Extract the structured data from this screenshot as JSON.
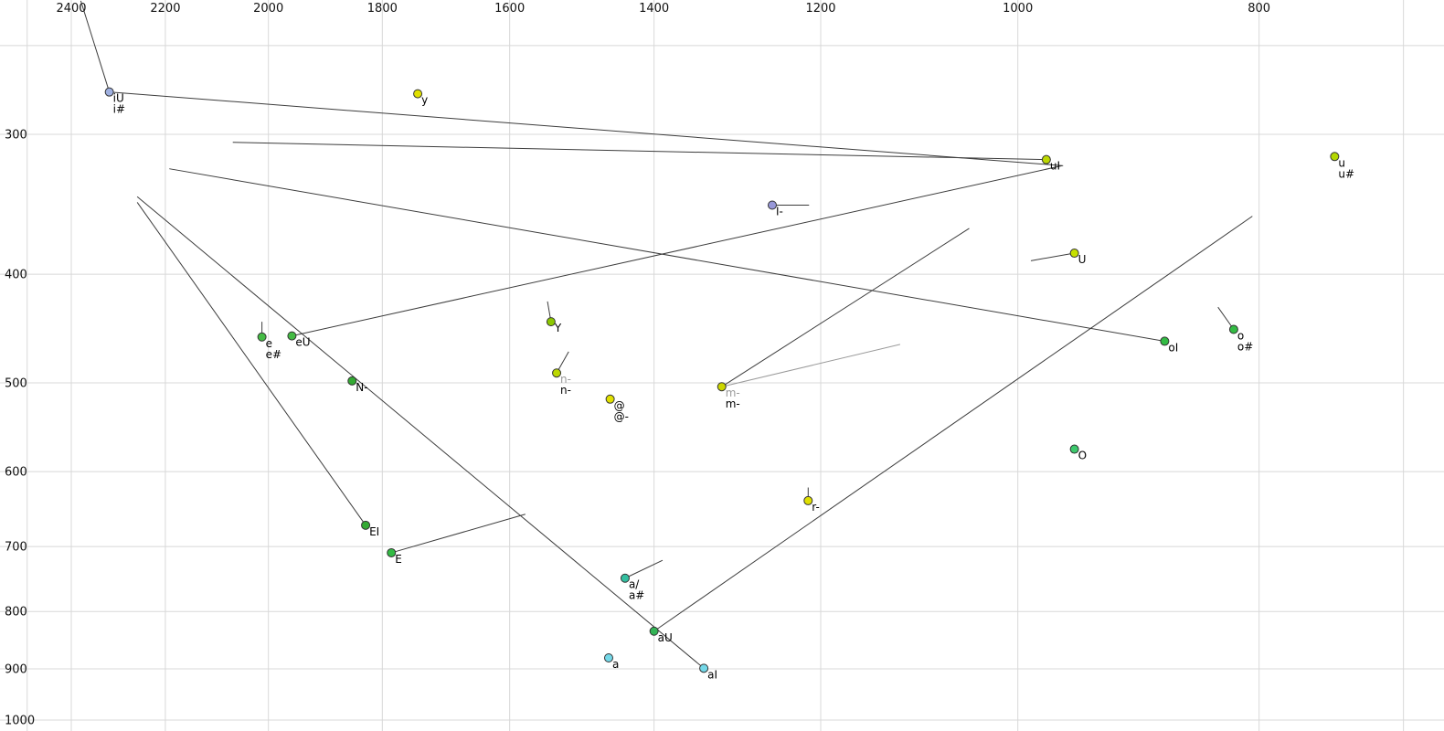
{
  "chart_data": {
    "type": "scatter",
    "title": "",
    "x_axis": {
      "scale": "log",
      "direction": "reversed",
      "range": [
        2564,
        674
      ],
      "ticks": [
        {
          "value": 2500,
          "label": ""
        },
        {
          "value": 2400,
          "label": "2400"
        },
        {
          "value": 2200,
          "label": "2200"
        },
        {
          "value": 2000,
          "label": "2000"
        },
        {
          "value": 1800,
          "label": "1800"
        },
        {
          "value": 1600,
          "label": "1600"
        },
        {
          "value": 1400,
          "label": "1400"
        },
        {
          "value": 1200,
          "label": "1200"
        },
        {
          "value": 1000,
          "label": "1000"
        },
        {
          "value": 800,
          "label": "800"
        },
        {
          "value": 700,
          "label": ""
        }
      ]
    },
    "y_axis": {
      "scale": "log",
      "direction": "increasing-downward",
      "range": [
        228,
        1023
      ],
      "ticks": [
        {
          "value": 250,
          "label": ""
        },
        {
          "value": 300,
          "label": "300"
        },
        {
          "value": 400,
          "label": "400"
        },
        {
          "value": 500,
          "label": "500"
        },
        {
          "value": 600,
          "label": "600"
        },
        {
          "value": 700,
          "label": "700"
        },
        {
          "value": 800,
          "label": "800"
        },
        {
          "value": 900,
          "label": "900"
        },
        {
          "value": 1000,
          "label": "1000"
        }
      ]
    },
    "style": {
      "grid_color": "#d8d8d8",
      "line_color": "#3c3c3c",
      "gray_line_color": "#9a9a9a",
      "point_stroke": "#333333",
      "label_color": "#000000",
      "gray_label_color": "#9a9a9a"
    },
    "points": [
      {
        "id": "iU",
        "f2": 2317,
        "f1": 275,
        "color": "#9fb0e0",
        "labels": [
          {
            "t": "iU"
          },
          {
            "t": "i#"
          }
        ]
      },
      {
        "id": "y",
        "f2": 1742,
        "f1": 276,
        "color": "#e0e000",
        "labels": [
          {
            "t": "y"
          }
        ]
      },
      {
        "id": "uI",
        "f2": 974,
        "f1": 316,
        "color": "#bcd800",
        "labels": [
          {
            "t": "uI"
          }
        ]
      },
      {
        "id": "u",
        "f2": 746,
        "f1": 314,
        "color": "#b4d800",
        "labels": [
          {
            "t": "u"
          },
          {
            "t": "u#"
          }
        ]
      },
      {
        "id": "I-",
        "f2": 1255,
        "f1": 347,
        "color": "#9898d8",
        "labels": [
          {
            "t": "I-"
          }
        ]
      },
      {
        "id": "U",
        "f2": 949,
        "f1": 383,
        "color": "#c6e000",
        "labels": [
          {
            "t": "U"
          }
        ]
      },
      {
        "id": "Y",
        "f2": 1540,
        "f1": 441,
        "color": "#8cc800",
        "labels": [
          {
            "t": "Y"
          }
        ]
      },
      {
        "id": "e",
        "f2": 2012,
        "f1": 455,
        "color": "#44bb44",
        "labels": [
          {
            "t": "e"
          },
          {
            "t": "e#"
          }
        ]
      },
      {
        "id": "eU",
        "f2": 1957,
        "f1": 454,
        "color": "#44bb44",
        "labels": [
          {
            "t": "eU"
          }
        ]
      },
      {
        "id": "n-",
        "f2": 1532,
        "f1": 490,
        "color": "#bcd800",
        "labels": [
          {
            "t": "n-",
            "gray": true
          },
          {
            "t": "n-"
          }
        ]
      },
      {
        "id": "N-",
        "f2": 1851,
        "f1": 498,
        "color": "#33aa33",
        "labels": [
          {
            "t": "N-"
          }
        ]
      },
      {
        "id": "@",
        "f2": 1458,
        "f1": 517,
        "color": "#e0e000",
        "labels": [
          {
            "t": "@"
          },
          {
            "t": "@-"
          }
        ]
      },
      {
        "id": "m-",
        "f2": 1315,
        "f1": 504,
        "color": "#ccd600",
        "labels": [
          {
            "t": "m-",
            "gray": true
          },
          {
            "t": "m-"
          }
        ]
      },
      {
        "id": "o",
        "f2": 819,
        "f1": 448,
        "color": "#33bb44",
        "labels": [
          {
            "t": "o"
          },
          {
            "t": "o#"
          }
        ]
      },
      {
        "id": "oI",
        "f2": 873,
        "f1": 459,
        "color": "#33bb44",
        "labels": [
          {
            "t": "oI"
          }
        ]
      },
      {
        "id": "O",
        "f2": 949,
        "f1": 573,
        "color": "#3cc86c",
        "labels": [
          {
            "t": "O"
          }
        ]
      },
      {
        "id": "r-",
        "f2": 1214,
        "f1": 637,
        "color": "#e0e000",
        "labels": [
          {
            "t": "r-"
          }
        ]
      },
      {
        "id": "EI",
        "f2": 1828,
        "f1": 670,
        "color": "#33aa33",
        "labels": [
          {
            "t": "EI"
          }
        ]
      },
      {
        "id": "E",
        "f2": 1785,
        "f1": 709,
        "color": "#33bb44",
        "labels": [
          {
            "t": "E"
          }
        ]
      },
      {
        "id": "a/",
        "f2": 1438,
        "f1": 747,
        "color": "#33bfa0",
        "labels": [
          {
            "t": "a/"
          },
          {
            "t": "a#"
          }
        ]
      },
      {
        "id": "aU",
        "f2": 1400,
        "f1": 833,
        "color": "#33b455",
        "labels": [
          {
            "t": "aU"
          }
        ]
      },
      {
        "id": "a",
        "f2": 1460,
        "f1": 880,
        "color": "#74d8e8",
        "labels": [
          {
            "t": "a"
          }
        ]
      },
      {
        "id": "aI",
        "f2": 1337,
        "f1": 899,
        "color": "#74d8e8",
        "labels": [
          {
            "t": "aI"
          }
        ]
      }
    ],
    "segments": [
      {
        "name": "iU-onset",
        "from": [
          2379,
          228
        ],
        "to": [
          2317,
          275
        ]
      },
      {
        "name": "iU-glide",
        "from": [
          2317,
          275
        ],
        "to": [
          959,
          320
        ]
      },
      {
        "name": "uI-glide",
        "from": [
          974,
          316
        ],
        "to": [
          2067,
          305
        ]
      },
      {
        "name": "eU-glide",
        "from": [
          1957,
          454
        ],
        "to": [
          960,
          320
        ]
      },
      {
        "name": "oI-glide",
        "from": [
          873,
          459
        ],
        "to": [
          2192,
          322
        ]
      },
      {
        "name": "aI-glide",
        "from": [
          1337,
          899
        ],
        "to": [
          2258,
          341
        ]
      },
      {
        "name": "EI-glide",
        "from": [
          1828,
          670
        ],
        "to": [
          2258,
          345
        ]
      },
      {
        "name": "aU-glide",
        "from": [
          1400,
          833
        ],
        "to": [
          805,
          355
        ]
      },
      {
        "name": "m--glide",
        "from": [
          1315,
          504
        ],
        "to": [
          1046,
          364
        ]
      },
      {
        "name": "m--glide2",
        "from": [
          1315,
          504
        ],
        "to": [
          1115,
          462
        ],
        "gray": true
      },
      {
        "name": "n--glide",
        "from": [
          1532,
          490
        ],
        "to": [
          1515,
          469
        ]
      },
      {
        "name": "I--glide",
        "from": [
          1255,
          347
        ],
        "to": [
          1213,
          347
        ]
      },
      {
        "name": "U-glide",
        "from": [
          949,
          383
        ],
        "to": [
          988,
          389
        ]
      },
      {
        "name": "o-glide",
        "from": [
          819,
          448
        ],
        "to": [
          831,
          428
        ]
      },
      {
        "name": "e-glide",
        "from": [
          2012,
          455
        ],
        "to": [
          2012,
          441
        ]
      },
      {
        "name": "Y-glide",
        "from": [
          1540,
          441
        ],
        "to": [
          1545,
          423
        ]
      },
      {
        "name": "a/-glide",
        "from": [
          1438,
          747
        ],
        "to": [
          1389,
          720
        ]
      },
      {
        "name": "E-glide",
        "from": [
          1785,
          709
        ],
        "to": [
          1577,
          655
        ]
      },
      {
        "name": "r--glide",
        "from": [
          1214,
          637
        ],
        "to": [
          1214,
          620
        ]
      }
    ]
  }
}
